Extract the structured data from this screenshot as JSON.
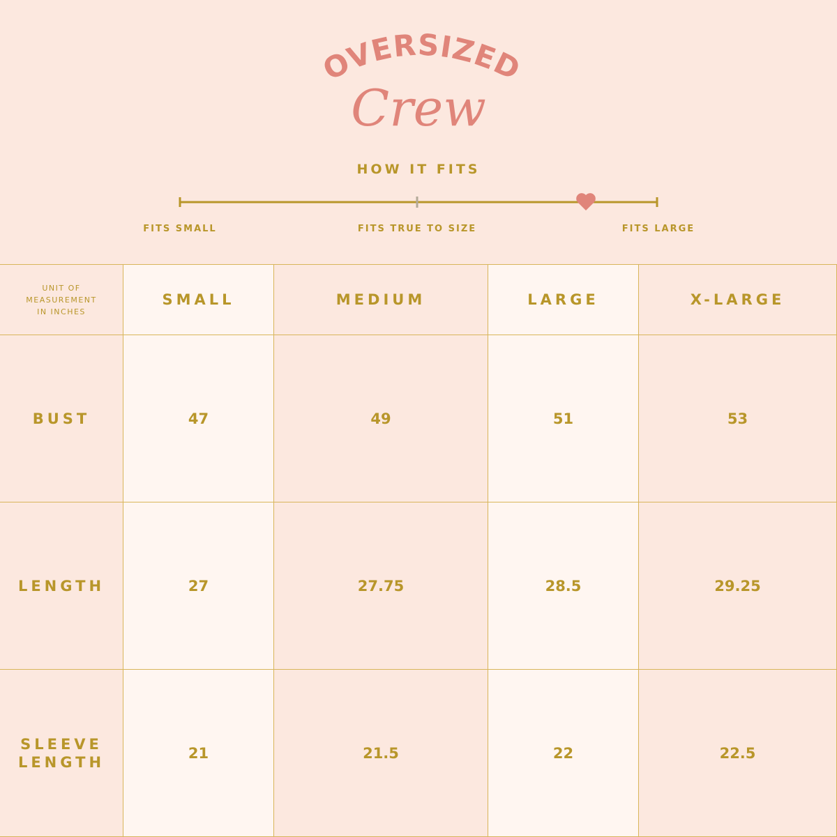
{
  "header": {
    "title": "OVERSIZED",
    "subtitle": "Crew"
  },
  "fit": {
    "title": "HOW IT FITS",
    "labels": [
      "FITS SMALL",
      "FITS TRUE TO SIZE",
      "FITS LARGE"
    ]
  },
  "table": {
    "corner": "UNIT OF MEASUREMENT IN INCHES",
    "columns": [
      "SMALL",
      "MEDIUM",
      "LARGE",
      "X-LARGE"
    ],
    "rows": [
      {
        "label": "BUST",
        "values": [
          "47",
          "49",
          "51",
          "53"
        ]
      },
      {
        "label": "LENGTH",
        "values": [
          "27",
          "27.75",
          "28.5",
          "29.25"
        ]
      },
      {
        "label": "SLEEVE LENGTH",
        "values": [
          "21",
          "21.5",
          "22",
          "22.5"
        ]
      }
    ]
  }
}
